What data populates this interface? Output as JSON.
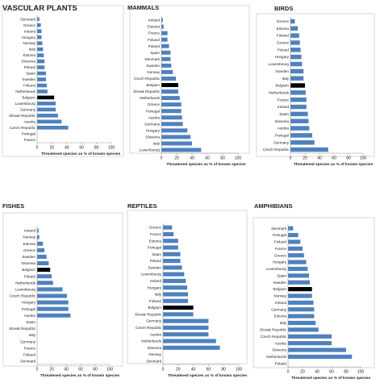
{
  "style": {
    "bar_color": "#4f81bd",
    "highlight_color": "#000000",
    "axis_color": "#999999",
    "frame_color": "#c8c8c8"
  },
  "chart_data": [
    {
      "type": "bar",
      "orientation": "horizontal",
      "title": "VASCULAR PLANTS",
      "xlabel": "Threatened species as % of known species",
      "xlim": [
        0,
        100
      ],
      "xticks": [
        0,
        20,
        40,
        60,
        80,
        100
      ],
      "highlight": "Belgium",
      "categories": [
        "Denmark",
        "Greece",
        "Ireland",
        "Hungary",
        "Norway",
        "Italy",
        "Estonia",
        "Slovenia",
        "Poland",
        "Spain",
        "Sweden",
        "Finland",
        "Netherlands",
        "Belgium",
        "Luxembourg",
        "Germany",
        "Slovak Republic",
        "Austria",
        "Czech Republic",
        "Portugal",
        "France"
      ],
      "values": [
        3,
        5,
        6,
        6,
        7,
        8,
        9,
        10,
        10,
        12,
        12,
        13,
        14,
        23,
        25,
        25,
        28,
        33,
        42,
        null,
        null
      ]
    },
    {
      "type": "bar",
      "orientation": "horizontal",
      "title": "MAMMALS",
      "xlabel": "Threatened species as % of known species",
      "xlim": [
        0,
        100
      ],
      "xticks": [
        0,
        20,
        40,
        60,
        80,
        100
      ],
      "highlight": "Belgium",
      "categories": [
        "Ireland",
        "Estonia",
        "France",
        "Finland",
        "Poland",
        "Spain",
        "Denmark",
        "Sweden",
        "Norway",
        "Czech Republic",
        "Belgium",
        "Slovak Republic",
        "Netherlands",
        "Greece",
        "Portugal",
        "Austria",
        "Germany",
        "Hungary",
        "Slovenia",
        "Italy",
        "Luxembourg"
      ],
      "values": [
        2,
        3,
        8,
        8,
        10,
        12,
        12,
        13,
        15,
        19,
        22,
        22,
        24,
        26,
        26,
        27,
        28,
        34,
        38,
        40,
        52
      ]
    },
    {
      "type": "bar",
      "orientation": "horizontal",
      "title": "BIRDS",
      "xlabel": "Threatened species as % of known species",
      "xlim": [
        0,
        100
      ],
      "xticks": [
        0,
        20,
        40,
        60,
        80,
        100
      ],
      "highlight": "Belgium",
      "categories": [
        "Greece",
        "Estonia",
        "Finland",
        "Greece",
        "Poland",
        "Hungary",
        "Luxembourg",
        "Sweden",
        "Italy",
        "Belgium",
        "Netherlands",
        "France",
        "Ireland",
        "Spain",
        "Slovenia",
        "Austria",
        "Portugal",
        "Germany",
        "Czech Republic"
      ],
      "values": [
        6,
        10,
        12,
        13,
        14,
        15,
        16,
        18,
        18,
        20,
        21,
        22,
        22,
        24,
        25,
        26,
        30,
        33,
        52
      ]
    },
    {
      "type": "bar",
      "orientation": "horizontal",
      "title": "FISHES",
      "xlabel": "Threatened species as % of known species",
      "xlim": [
        0,
        100
      ],
      "xticks": [
        0,
        20,
        40,
        60,
        80,
        100
      ],
      "highlight": "Belgium",
      "categories": [
        "Ireland",
        "Norway",
        "Estonia",
        "Greece",
        "Sweden",
        "Slovenia",
        "Belgium",
        "Poland",
        "Netherlands",
        "Luxembourg",
        "Czech Republic",
        "Hungary",
        "Portugal",
        "Austria",
        "Spain",
        "Slovak Republic",
        "Italy",
        "Germany",
        "France",
        "Finland",
        "Denmark"
      ],
      "values": [
        2,
        3,
        8,
        10,
        13,
        16,
        18,
        20,
        22,
        35,
        41,
        43,
        43,
        46,
        null,
        null,
        null,
        null,
        null,
        null,
        null
      ]
    },
    {
      "type": "bar",
      "orientation": "horizontal",
      "title": "REPTILES",
      "xlabel": "Threatened species as % of known species",
      "xlim": [
        0,
        100
      ],
      "xticks": [
        0,
        20,
        40,
        60,
        80,
        100
      ],
      "highlight": "Belgium",
      "categories": [
        "Greece",
        "France",
        "Estonia",
        "Portugal",
        "Spain",
        "Poland",
        "Sweden",
        "Luxembourg",
        "Ireland",
        "Hungary",
        "Italy",
        "Finland",
        "Belgium",
        "Slovak Republic",
        "Germany",
        "Czech Republic",
        "Austria",
        "Netherlands",
        "Slovenia",
        "Norway",
        "Denmark"
      ],
      "values": [
        12,
        14,
        20,
        20,
        23,
        23,
        25,
        28,
        30,
        32,
        33,
        33,
        40,
        40,
        60,
        60,
        60,
        70,
        75,
        null,
        null
      ]
    },
    {
      "type": "bar",
      "orientation": "horizontal",
      "title": "AMPHIBIANS",
      "xlabel": "Threatened species as % of known species",
      "xlim": [
        0,
        100
      ],
      "xticks": [
        0,
        20,
        40,
        60,
        80,
        100
      ],
      "highlight": "Belgium",
      "categories": [
        "Denmark",
        "Portugal",
        "Finland",
        "France",
        "Greece",
        "Hungary",
        "Luxembourg",
        "Spain",
        "Sweden",
        "Belgium",
        "Norway",
        "Ireland",
        "Germany",
        "Estonia",
        "Italy",
        "Slovak Republic",
        "Czech Republic",
        "Austria",
        "Slovenia",
        "Netherlands",
        "Poland"
      ],
      "values": [
        7,
        14,
        17,
        20,
        22,
        25,
        27,
        29,
        30,
        33,
        33,
        35,
        36,
        36,
        38,
        42,
        60,
        60,
        80,
        88,
        null
      ]
    }
  ]
}
